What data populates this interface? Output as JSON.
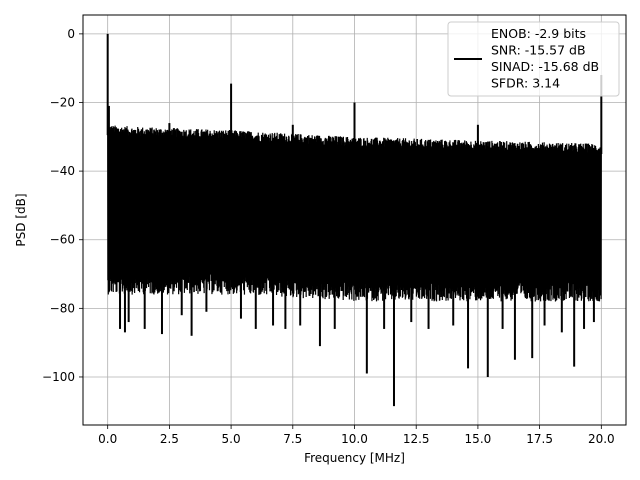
{
  "chart_data": {
    "type": "line",
    "title": "",
    "xlabel": "Frequency [MHz]",
    "ylabel": "PSD [dB]",
    "xlim": [
      -1.0,
      21.0
    ],
    "ylim": [
      -114.0,
      5.5
    ],
    "xticks": [
      0.0,
      2.5,
      5.0,
      7.5,
      10.0,
      12.5,
      15.0,
      17.5,
      20.0
    ],
    "xtick_labels": [
      "0.0",
      "2.5",
      "5.0",
      "7.5",
      "10.0",
      "12.5",
      "15.0",
      "17.5",
      "20.0"
    ],
    "yticks": [
      0,
      -20,
      -40,
      -60,
      -80,
      -100
    ],
    "ytick_labels": [
      "0",
      "−20",
      "−40",
      "−60",
      "−80",
      "−100"
    ],
    "grid": true,
    "legend_position": "top-right",
    "line_color": "#000000",
    "series": [
      {
        "name": "ENOB: -2.9 bits\nSNR: -15.57 dB\nSINAD: -15.68 dB\nSFDR: 3.14",
        "legend_lines": [
          "ENOB: -2.9 bits",
          "SNR: -15.57 dB",
          "SINAD: -15.68 dB",
          "SFDR: 3.14"
        ],
        "noise_floor_upper_db": [
          [
            0.0,
            -29.5
          ],
          [
            1.0,
            -30.0
          ],
          [
            5.0,
            -31.0
          ],
          [
            10.0,
            -33.0
          ],
          [
            15.0,
            -34.0
          ],
          [
            20.0,
            -35.0
          ]
        ],
        "noise_floor_lower_db": [
          [
            0.0,
            -70.0
          ],
          [
            5.0,
            -70.0
          ],
          [
            10.0,
            -72.0
          ],
          [
            15.0,
            -72.0
          ],
          [
            20.0,
            -72.0
          ]
        ],
        "spikes": [
          {
            "x": 0.0,
            "y": 0.0
          },
          {
            "x": 0.05,
            "y": -21.0
          },
          {
            "x": 2.5,
            "y": -26.0
          },
          {
            "x": 5.0,
            "y": -14.5
          },
          {
            "x": 7.5,
            "y": -26.5
          },
          {
            "x": 10.0,
            "y": -20.0
          },
          {
            "x": 15.0,
            "y": -26.5
          },
          {
            "x": 20.0,
            "y": -12.0
          }
        ],
        "dips": [
          {
            "x": 0.5,
            "y": -86.0
          },
          {
            "x": 0.7,
            "y": -87.0
          },
          {
            "x": 0.85,
            "y": -84.0
          },
          {
            "x": 1.5,
            "y": -86.0
          },
          {
            "x": 2.2,
            "y": -87.5
          },
          {
            "x": 3.0,
            "y": -82.0
          },
          {
            "x": 3.4,
            "y": -88.0
          },
          {
            "x": 4.0,
            "y": -81.0
          },
          {
            "x": 5.4,
            "y": -83.0
          },
          {
            "x": 6.0,
            "y": -86.0
          },
          {
            "x": 6.7,
            "y": -85.0
          },
          {
            "x": 7.2,
            "y": -86.0
          },
          {
            "x": 7.8,
            "y": -85.0
          },
          {
            "x": 8.6,
            "y": -91.0
          },
          {
            "x": 9.2,
            "y": -86.0
          },
          {
            "x": 10.5,
            "y": -99.0
          },
          {
            "x": 11.2,
            "y": -86.0
          },
          {
            "x": 11.6,
            "y": -108.5
          },
          {
            "x": 12.3,
            "y": -84.0
          },
          {
            "x": 13.0,
            "y": -86.0
          },
          {
            "x": 14.0,
            "y": -85.0
          },
          {
            "x": 14.6,
            "y": -97.5
          },
          {
            "x": 15.4,
            "y": -100.0
          },
          {
            "x": 16.0,
            "y": -86.0
          },
          {
            "x": 16.5,
            "y": -95.0
          },
          {
            "x": 17.2,
            "y": -94.5
          },
          {
            "x": 17.7,
            "y": -85.0
          },
          {
            "x": 18.4,
            "y": -87.0
          },
          {
            "x": 18.9,
            "y": -97.0
          },
          {
            "x": 19.3,
            "y": -86.0
          },
          {
            "x": 19.7,
            "y": -84.0
          }
        ]
      }
    ]
  }
}
